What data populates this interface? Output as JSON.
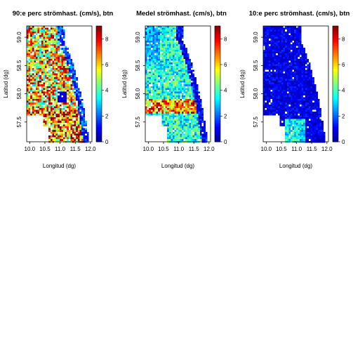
{
  "chart_data": [
    {
      "type": "heatmap",
      "title": "90:e perc strömhast. (cm/s), btn",
      "xlabel": "Longitud (dg)",
      "ylabel": "Latitud (dg)",
      "xlim": [
        9.9,
        12.05
      ],
      "ylim": [
        57.15,
        59.2
      ],
      "x_ticks": [
        "10.0",
        "10.5",
        "11.0",
        "11.5",
        "12.0"
      ],
      "y_ticks": [
        "57.5",
        "58.0",
        "58.5",
        "59.0"
      ],
      "colorbar": {
        "min": 0,
        "max": 9,
        "ticks": [
          "0",
          "2",
          "4",
          "6",
          "8"
        ]
      },
      "value_range_shown": [
        0,
        9
      ],
      "pattern": "high"
    },
    {
      "type": "heatmap",
      "title": "Medel strömhast. (cm/s), btn",
      "xlabel": "Longitud (dg)",
      "ylabel": "Latitud (dg)",
      "xlim": [
        9.9,
        12.05
      ],
      "ylim": [
        57.15,
        59.2
      ],
      "x_ticks": [
        "10.0",
        "10.5",
        "11.0",
        "11.5",
        "12.0"
      ],
      "y_ticks": [
        "57.5",
        "58.0",
        "58.5",
        "59.0"
      ],
      "colorbar": {
        "min": 0,
        "max": 9,
        "ticks": [
          "0",
          "2",
          "4",
          "6",
          "8"
        ]
      },
      "value_range_shown": [
        0,
        9
      ],
      "pattern": "mid"
    },
    {
      "type": "heatmap",
      "title": "10:e perc strömhast. (cm/s), btn",
      "xlabel": "Longitud (dg)",
      "ylabel": "Latitud (dg)",
      "xlim": [
        9.9,
        12.05
      ],
      "ylim": [
        57.15,
        59.2
      ],
      "x_ticks": [
        "10.0",
        "10.5",
        "11.0",
        "11.5",
        "12.0"
      ],
      "y_ticks": [
        "57.5",
        "58.0",
        "58.5",
        "59.0"
      ],
      "colorbar": {
        "min": 0,
        "max": 9,
        "ticks": [
          "0",
          "2",
          "4",
          "6",
          "8"
        ]
      },
      "value_range_shown": [
        0,
        3
      ],
      "pattern": "low"
    }
  ],
  "colors": {
    "colormap": [
      "#00008f",
      "#0000ff",
      "#0080ff",
      "#00ffff",
      "#80ff80",
      "#ffff00",
      "#ff8000",
      "#ff0000",
      "#800000"
    ]
  }
}
